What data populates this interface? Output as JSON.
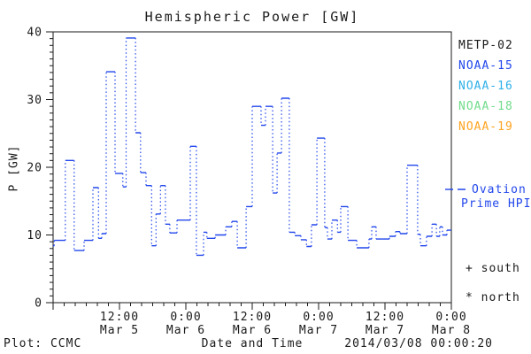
{
  "title": "Hemispheric Power [GW]",
  "footer": {
    "plot_credit": "Plot: CCMC",
    "axis_label": "Date and Time",
    "timestamp": "2014/03/08 00:00:20"
  },
  "legend": {
    "satellites": [
      {
        "label": "METP-02",
        "color": "#1a1a1a"
      },
      {
        "label": "NOAA-15",
        "color": "#2247EC"
      },
      {
        "label": "NOAA-16",
        "color": "#2FB0E8"
      },
      {
        "label": "NOAA-18",
        "color": "#71DC8C"
      },
      {
        "label": "NOAA-19",
        "color": "#FFA421"
      }
    ],
    "model": {
      "label_line1": "Ovation",
      "label_line2": "Prime HPI",
      "color": "#2247EC"
    },
    "markers": [
      {
        "symbol": "+",
        "label": "south"
      },
      {
        "symbol": "*",
        "label": "north"
      }
    ]
  },
  "chart_data": {
    "type": "line",
    "style": "step plot: solid horizontal segments, dotted vertical connectors",
    "title": "Hemispheric Power [GW]",
    "xlabel": "Date and Time",
    "ylabel": "P [GW]",
    "ylim": [
      0,
      40
    ],
    "x_start": "2014-03-05 00:00",
    "x_end": "2014-03-08 00:00",
    "x_hours_span": 72,
    "x_minor_step_hours": 2,
    "y_minor_step": 1,
    "yticks_major": [
      0,
      10,
      20,
      30,
      40
    ],
    "xticks_major": [
      {
        "hours": 12,
        "time": "12:00",
        "date": "Mar 5"
      },
      {
        "hours": 24,
        "time": "0:00",
        "date": "Mar 6"
      },
      {
        "hours": 36,
        "time": "12:00",
        "date": "Mar 6"
      },
      {
        "hours": 48,
        "time": "0:00",
        "date": "Mar 7"
      },
      {
        "hours": 60,
        "time": "12:00",
        "date": "Mar 7"
      },
      {
        "hours": 72,
        "time": "0:00",
        "date": "Mar 8"
      }
    ],
    "grid": false,
    "legend_position": "right, outside plot",
    "series": [
      {
        "name": "Ovation Prime HPI",
        "color": "#2247EC",
        "units": "GW",
        "steps_hours_value": [
          [
            0.0,
            8.4
          ],
          [
            0.2,
            9.2
          ],
          [
            2.2,
            21.0
          ],
          [
            3.8,
            7.7
          ],
          [
            5.6,
            9.2
          ],
          [
            7.2,
            17.0
          ],
          [
            8.2,
            9.5
          ],
          [
            8.8,
            10.2
          ],
          [
            9.6,
            34.1
          ],
          [
            11.2,
            19.1
          ],
          [
            12.6,
            17.1
          ],
          [
            13.2,
            39.1
          ],
          [
            14.9,
            25.1
          ],
          [
            15.8,
            19.2
          ],
          [
            16.8,
            17.3
          ],
          [
            17.8,
            8.4
          ],
          [
            18.6,
            13.1
          ],
          [
            19.4,
            17.3
          ],
          [
            20.3,
            11.6
          ],
          [
            21.1,
            10.3
          ],
          [
            22.4,
            12.2
          ],
          [
            24.8,
            23.1
          ],
          [
            25.9,
            7.0
          ],
          [
            27.2,
            10.4
          ],
          [
            27.8,
            9.5
          ],
          [
            29.3,
            10.0
          ],
          [
            31.2,
            11.2
          ],
          [
            32.3,
            12.0
          ],
          [
            33.3,
            8.1
          ],
          [
            34.9,
            14.2
          ],
          [
            36.0,
            29.0
          ],
          [
            37.6,
            26.2
          ],
          [
            38.4,
            29.0
          ],
          [
            39.7,
            16.2
          ],
          [
            40.5,
            22.1
          ],
          [
            41.3,
            30.2
          ],
          [
            42.7,
            10.4
          ],
          [
            43.7,
            9.9
          ],
          [
            44.8,
            9.3
          ],
          [
            45.8,
            8.3
          ],
          [
            46.7,
            11.5
          ],
          [
            47.7,
            24.3
          ],
          [
            49.1,
            11.1
          ],
          [
            49.6,
            9.4
          ],
          [
            50.4,
            12.2
          ],
          [
            51.4,
            10.4
          ],
          [
            52.0,
            14.2
          ],
          [
            53.3,
            9.2
          ],
          [
            54.9,
            8.1
          ],
          [
            57.1,
            9.4
          ],
          [
            57.6,
            11.2
          ],
          [
            58.4,
            9.4
          ],
          [
            60.8,
            9.8
          ],
          [
            61.9,
            10.5
          ],
          [
            62.7,
            10.2
          ],
          [
            64.0,
            20.3
          ],
          [
            65.9,
            10.1
          ],
          [
            66.4,
            8.4
          ],
          [
            67.5,
            9.8
          ],
          [
            68.5,
            11.6
          ],
          [
            69.3,
            9.8
          ],
          [
            69.9,
            11.2
          ],
          [
            70.4,
            10.0
          ],
          [
            71.2,
            10.7
          ]
        ]
      }
    ]
  }
}
